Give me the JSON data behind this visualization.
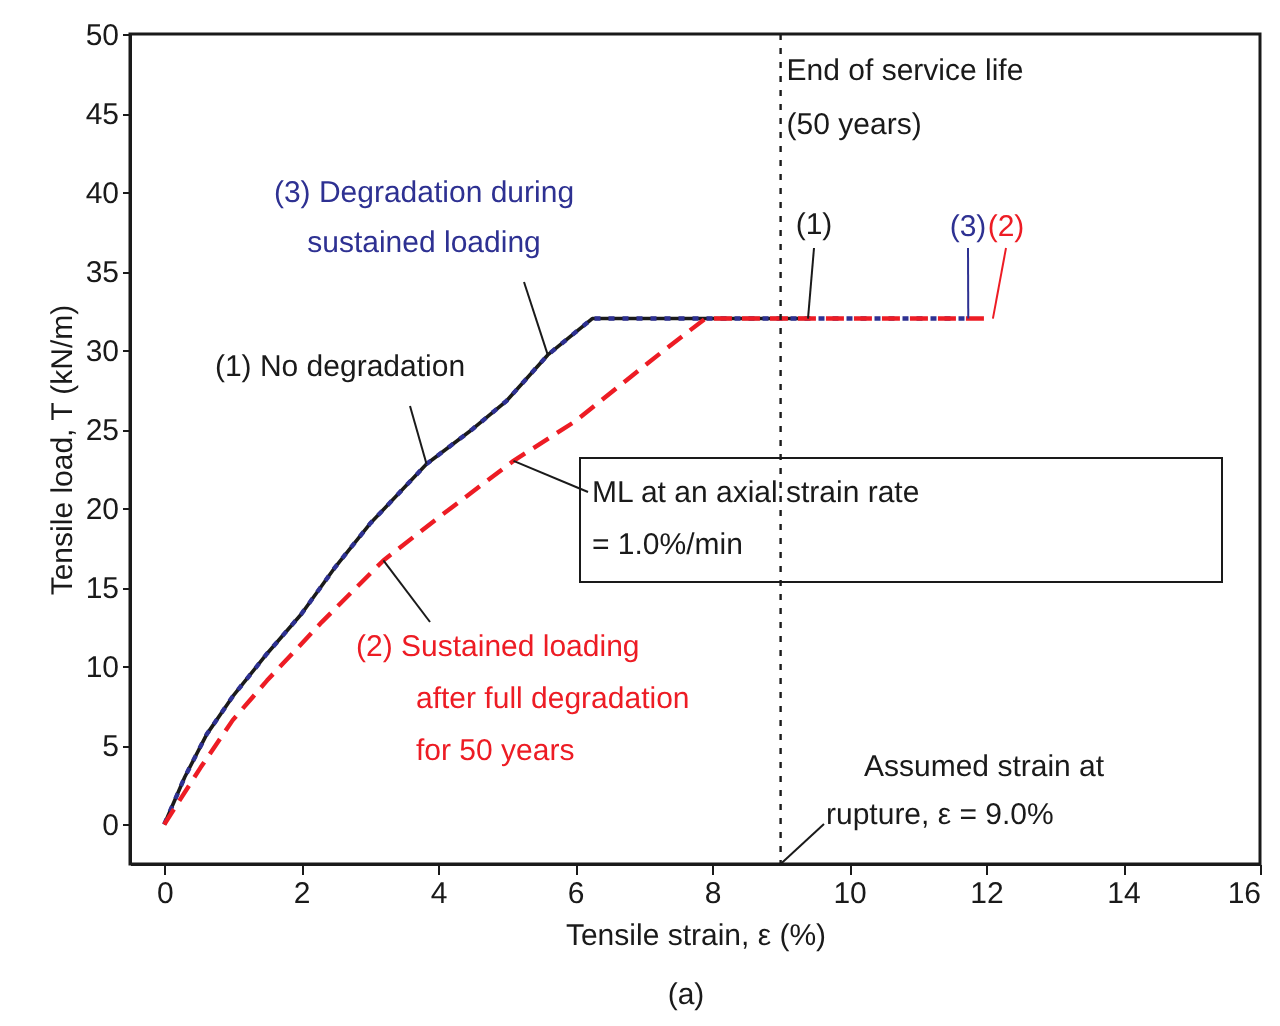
{
  "chart_data": {
    "type": "line",
    "xlabel": "Tensile strain, ε (%)",
    "ylabel": "Tensile load, T (kN/m)",
    "xlim": [
      -0.5,
      16
    ],
    "ylim": [
      -2.5,
      50
    ],
    "xticks": [
      0,
      2,
      4,
      6,
      8,
      10,
      12,
      14,
      16
    ],
    "yticks": [
      0,
      5,
      10,
      15,
      20,
      25,
      30,
      35,
      40,
      45,
      50
    ],
    "grid": false,
    "series": [
      {
        "color": "#1a1a1a",
        "line_style": "solid",
        "x": [
          0,
          0.3,
          0.62,
          1,
          1.5,
          2,
          2.5,
          3,
          3.83,
          4.5,
          5,
          5.6,
          6.25,
          9.4
        ],
        "values": [
          0,
          3,
          5.7,
          8.1,
          10.8,
          13.3,
          16.3,
          19,
          22.8,
          25,
          26.8,
          29.7,
          32,
          32
        ]
      },
      {
        "color": "#2e3192",
        "line_style": "dotted",
        "x": [
          0,
          0.3,
          0.62,
          1,
          1.5,
          2,
          2.5,
          3,
          3.83,
          4.5,
          5,
          5.6,
          6.25,
          11.74
        ],
        "values": [
          0,
          3,
          5.7,
          8.1,
          10.8,
          13.3,
          16.3,
          19,
          22.8,
          25,
          26.8,
          29.7,
          32,
          32
        ]
      },
      {
        "color": "#ed1c24",
        "line_style": "dashed",
        "x": [
          0,
          0.53,
          1,
          1.5,
          2.3,
          3.2,
          4,
          5.1,
          6,
          6.75,
          7.3,
          7.9,
          12.1
        ],
        "values": [
          0,
          3.6,
          6.6,
          9.1,
          12.8,
          16.7,
          19.4,
          23,
          25.5,
          28.1,
          30,
          32,
          32
        ]
      }
    ],
    "ref_lines": [
      {
        "axis": "x",
        "value": 9,
        "label": "End of service life\n(50 years)",
        "line_style": "dotted",
        "color": "#1a1a1a"
      }
    ],
    "annotations": [
      {
        "text": "(1)",
        "x": 9.4,
        "y": 32
      },
      {
        "text": "(3)",
        "x": 11.74,
        "y": 32
      },
      {
        "text": "(2)",
        "x": 12.1,
        "y": 32
      },
      {
        "text": "(3) Degradation during\nsustained loading",
        "x": 5.6,
        "y": 29.7
      },
      {
        "text": "(1) No degradation",
        "x": 3.83,
        "y": 22.8
      },
      {
        "text": "ML at an axial strain rate\n= 1.0%/min",
        "x": 5.1,
        "y": 23
      },
      {
        "text": "(2) Sustained loading\nafter full degradation\nfor 50 years",
        "x": 3.2,
        "y": 16.7
      },
      {
        "text": "Assumed strain at\nrupture, ε = 9.0%",
        "x": 9,
        "y": -2.5
      },
      "(a)"
    ]
  }
}
